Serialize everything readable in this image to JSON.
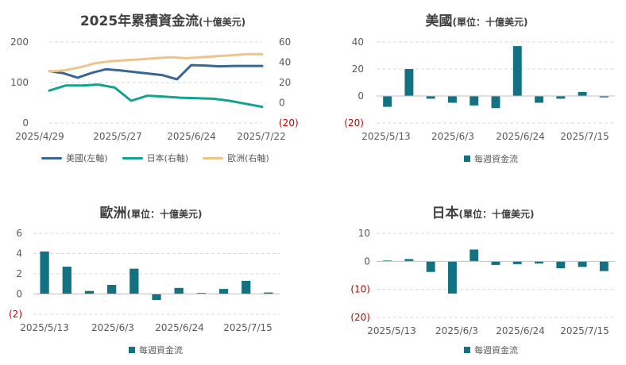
{
  "colors": {
    "us": "#3b6592",
    "japan": "#14a28f",
    "europe": "#ecc48c",
    "bar": "#127282",
    "negative": "#c00000",
    "grid": "#d9d9d9"
  },
  "chart_data": [
    {
      "id": "cumulative",
      "type": "line",
      "title": "2025年累積資金流",
      "subtitle": "(十億美元)",
      "x_ticks": [
        "2025/4/29",
        "2025/5/27",
        "2025/6/24",
        "2025/7/22"
      ],
      "y_left": {
        "ticks": [
          "0",
          "100",
          "200"
        ],
        "lim": [
          0,
          200
        ]
      },
      "y_right": {
        "ticks": [
          "(20)",
          "0",
          "20",
          "40",
          "60"
        ],
        "lim": [
          -20,
          60
        ]
      },
      "series": [
        {
          "name": "美國(左軸)",
          "axis": "left",
          "values": [
            128,
            123,
            112,
            124,
            133,
            130,
            126,
            122,
            118,
            108,
            143,
            142,
            140,
            141,
            141,
            141
          ]
        },
        {
          "name": "日本(右軸)",
          "axis": "right",
          "values": [
            12,
            17,
            17,
            18,
            15,
            2,
            7,
            6,
            5,
            4.5,
            4,
            2,
            -1,
            -4
          ]
        },
        {
          "name": "歐洲(右軸)",
          "axis": "right",
          "values": [
            31,
            32,
            35,
            39,
            41,
            42,
            43,
            44,
            45,
            44,
            45,
            46,
            47,
            48,
            48
          ]
        }
      ]
    },
    {
      "id": "us",
      "type": "bar",
      "title": "美國",
      "subtitle": "(單位：十億美元)",
      "y_ticks": [
        "(20)",
        "0",
        "20",
        "40"
      ],
      "ylim": [
        -20,
        40
      ],
      "x_ticks": [
        "2025/5/13",
        "2025/6/3",
        "2025/6/24",
        "2025/7/15"
      ],
      "legend": "每週資金流",
      "values": [
        -8,
        20,
        -2,
        -5,
        -7,
        -9,
        37,
        -5,
        -2,
        3,
        -1
      ]
    },
    {
      "id": "europe",
      "type": "bar",
      "title": "歐洲",
      "subtitle": "(單位：十億美元)",
      "y_ticks": [
        "(2)",
        "0",
        "2",
        "4",
        "6"
      ],
      "ylim": [
        -2,
        6
      ],
      "x_ticks": [
        "2025/5/13",
        "2025/6/3",
        "2025/6/24",
        "2025/7/15"
      ],
      "legend": "每週資金流",
      "values": [
        4.2,
        2.7,
        0.3,
        0.9,
        2.5,
        -0.6,
        0.6,
        0.1,
        0.5,
        1.3,
        0.15
      ]
    },
    {
      "id": "japan",
      "type": "bar",
      "title": "日本",
      "subtitle": "(單位：十億美元)",
      "y_ticks": [
        "(20)",
        "(10)",
        "0",
        "10"
      ],
      "ylim": [
        -20,
        10
      ],
      "x_ticks": [
        "2025/5/13",
        "2025/6/3",
        "2025/6/24",
        "2025/7/15"
      ],
      "legend": "每週資金流",
      "values": [
        0.3,
        0.8,
        -3.8,
        -11.5,
        4.2,
        -1.3,
        -1,
        -0.8,
        -2.5,
        -2,
        -3.5
      ]
    }
  ]
}
